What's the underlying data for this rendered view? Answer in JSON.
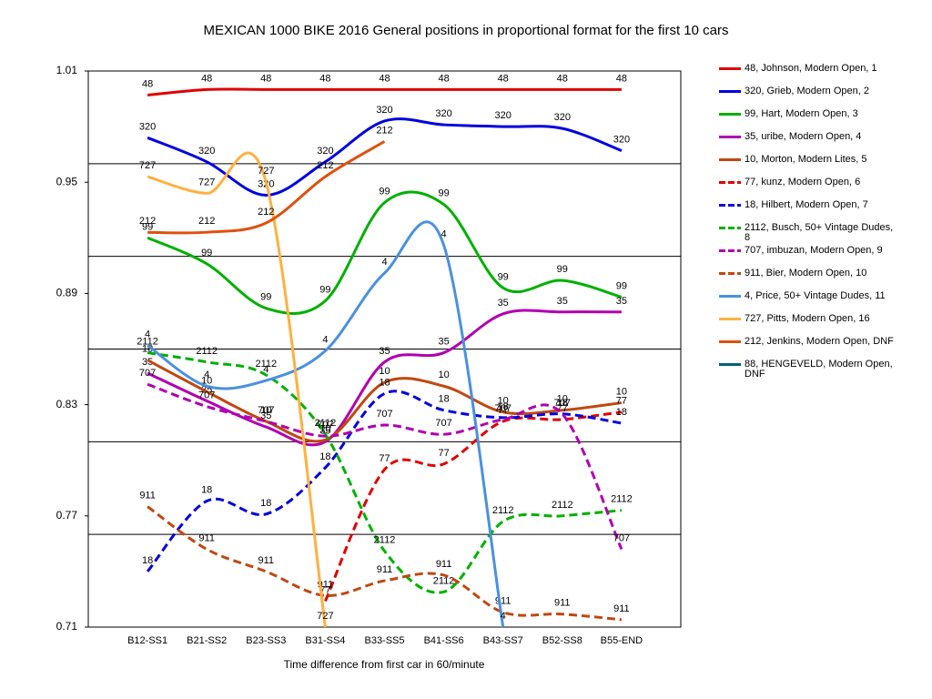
{
  "chart_data": {
    "type": "line",
    "title": "MEXICAN 1000 BIKE 2016  General positions in proportional format for the first 10 cars",
    "x_label": "Time difference from first car in 60/minute",
    "categories": [
      "B12-SS1",
      "B21-SS2",
      "B23-SS3",
      "B31-SS4",
      "B33-SS5",
      "B41-SS6",
      "B43-SS7",
      "B52-SS8",
      "B55-END"
    ],
    "ylim": [
      0.71,
      1.01
    ],
    "yticks": [
      {
        "value": 0.71,
        "label": "0.71"
      },
      0.77,
      0.83,
      0.89,
      0.95,
      {
        "value": 1.01,
        "label": "1.01"
      }
    ],
    "ygrid": [
      0.76,
      0.81,
      0.86,
      0.91,
      0.96
    ],
    "series": [
      {
        "name": "48, Johnson, Modern Open, 1",
        "label": "48",
        "color": "#e00000",
        "dashed": false,
        "values": [
          0.997,
          1.0,
          1.0,
          1.0,
          1.0,
          1.0,
          1.0,
          1.0,
          1.0
        ]
      },
      {
        "name": "320, Grieb, Modern Open, 2",
        "label": "320",
        "color": "#0000e0",
        "dashed": false,
        "values": [
          0.974,
          0.961,
          0.943,
          0.961,
          0.983,
          0.981,
          0.98,
          0.979,
          0.967
        ]
      },
      {
        "name": "99, Hart, Modern Open, 3",
        "label": "99",
        "color": "#00b000",
        "dashed": false,
        "values": [
          0.92,
          0.906,
          0.882,
          0.886,
          0.939,
          0.938,
          0.893,
          0.897,
          0.888
        ]
      },
      {
        "name": "35, uribe, Modern Open, 4",
        "label": "35",
        "color": "#b000b0",
        "dashed": false,
        "values": [
          0.847,
          0.832,
          0.818,
          0.81,
          0.853,
          0.858,
          0.879,
          0.88,
          0.88
        ]
      },
      {
        "name": "10, Morton, Modern Lites, 5",
        "label": "10",
        "color": "#c04810",
        "dashed": false,
        "values": [
          0.854,
          0.837,
          0.821,
          0.811,
          0.842,
          0.84,
          0.826,
          0.827,
          0.831
        ]
      },
      {
        "name": "77, kunz, Modern Open, 6",
        "label": "77",
        "color": "#e00000",
        "dashed": true,
        "values": [
          null,
          null,
          null,
          0.724,
          0.795,
          0.798,
          0.821,
          0.822,
          0.826
        ]
      },
      {
        "name": "18, Hilbert, Modern Open, 7",
        "label": "18",
        "color": "#0000e0",
        "dashed": true,
        "values": [
          0.74,
          0.778,
          0.771,
          0.796,
          0.836,
          0.827,
          0.823,
          0.825,
          0.82
        ]
      },
      {
        "name": "2112, Busch, 50+ Vintage Dudes, 8",
        "label": "2112",
        "color": "#00b000",
        "dashed": true,
        "values": [
          0.858,
          0.853,
          0.846,
          0.814,
          0.751,
          0.729,
          0.767,
          0.77,
          0.773
        ]
      },
      {
        "name": "707, imbuzan, Modern Open, 9",
        "label": "707",
        "color": "#b000b0",
        "dashed": true,
        "values": [
          0.841,
          0.829,
          0.821,
          0.813,
          0.819,
          0.814,
          0.822,
          0.825,
          0.752
        ]
      },
      {
        "name": "911, Bier, Modern Open, 10",
        "label": "911",
        "color": "#c04810",
        "dashed": true,
        "values": [
          0.775,
          0.752,
          0.74,
          0.727,
          0.735,
          0.738,
          0.718,
          0.717,
          0.714
        ]
      },
      {
        "name": "4, Price, 50+ Vintage Dudes, 11",
        "label": "4",
        "color": "#4a90e0",
        "dashed": false,
        "values": [
          0.862,
          0.84,
          0.843,
          0.859,
          0.901,
          0.916,
          0.71,
          null,
          null
        ]
      },
      {
        "name": "727, Pitts, Modern Open, 16",
        "label": "727",
        "color": "#ffb040",
        "dashed": false,
        "values": [
          0.953,
          0.944,
          0.95,
          0.71,
          null,
          null,
          null,
          null,
          null
        ]
      },
      {
        "name": "212, Jenkins, Modern Open, DNF",
        "label": "212",
        "color": "#e05010",
        "dashed": false,
        "values": [
          0.923,
          0.923,
          0.928,
          0.953,
          0.972,
          null,
          null,
          null,
          null
        ]
      },
      {
        "name": "88, HENGEVELD, Modern Open, DNF",
        "label": "88",
        "color": "#006080",
        "dashed": false,
        "values": [
          null,
          null,
          null,
          null,
          null,
          null,
          null,
          null,
          null
        ]
      }
    ]
  }
}
